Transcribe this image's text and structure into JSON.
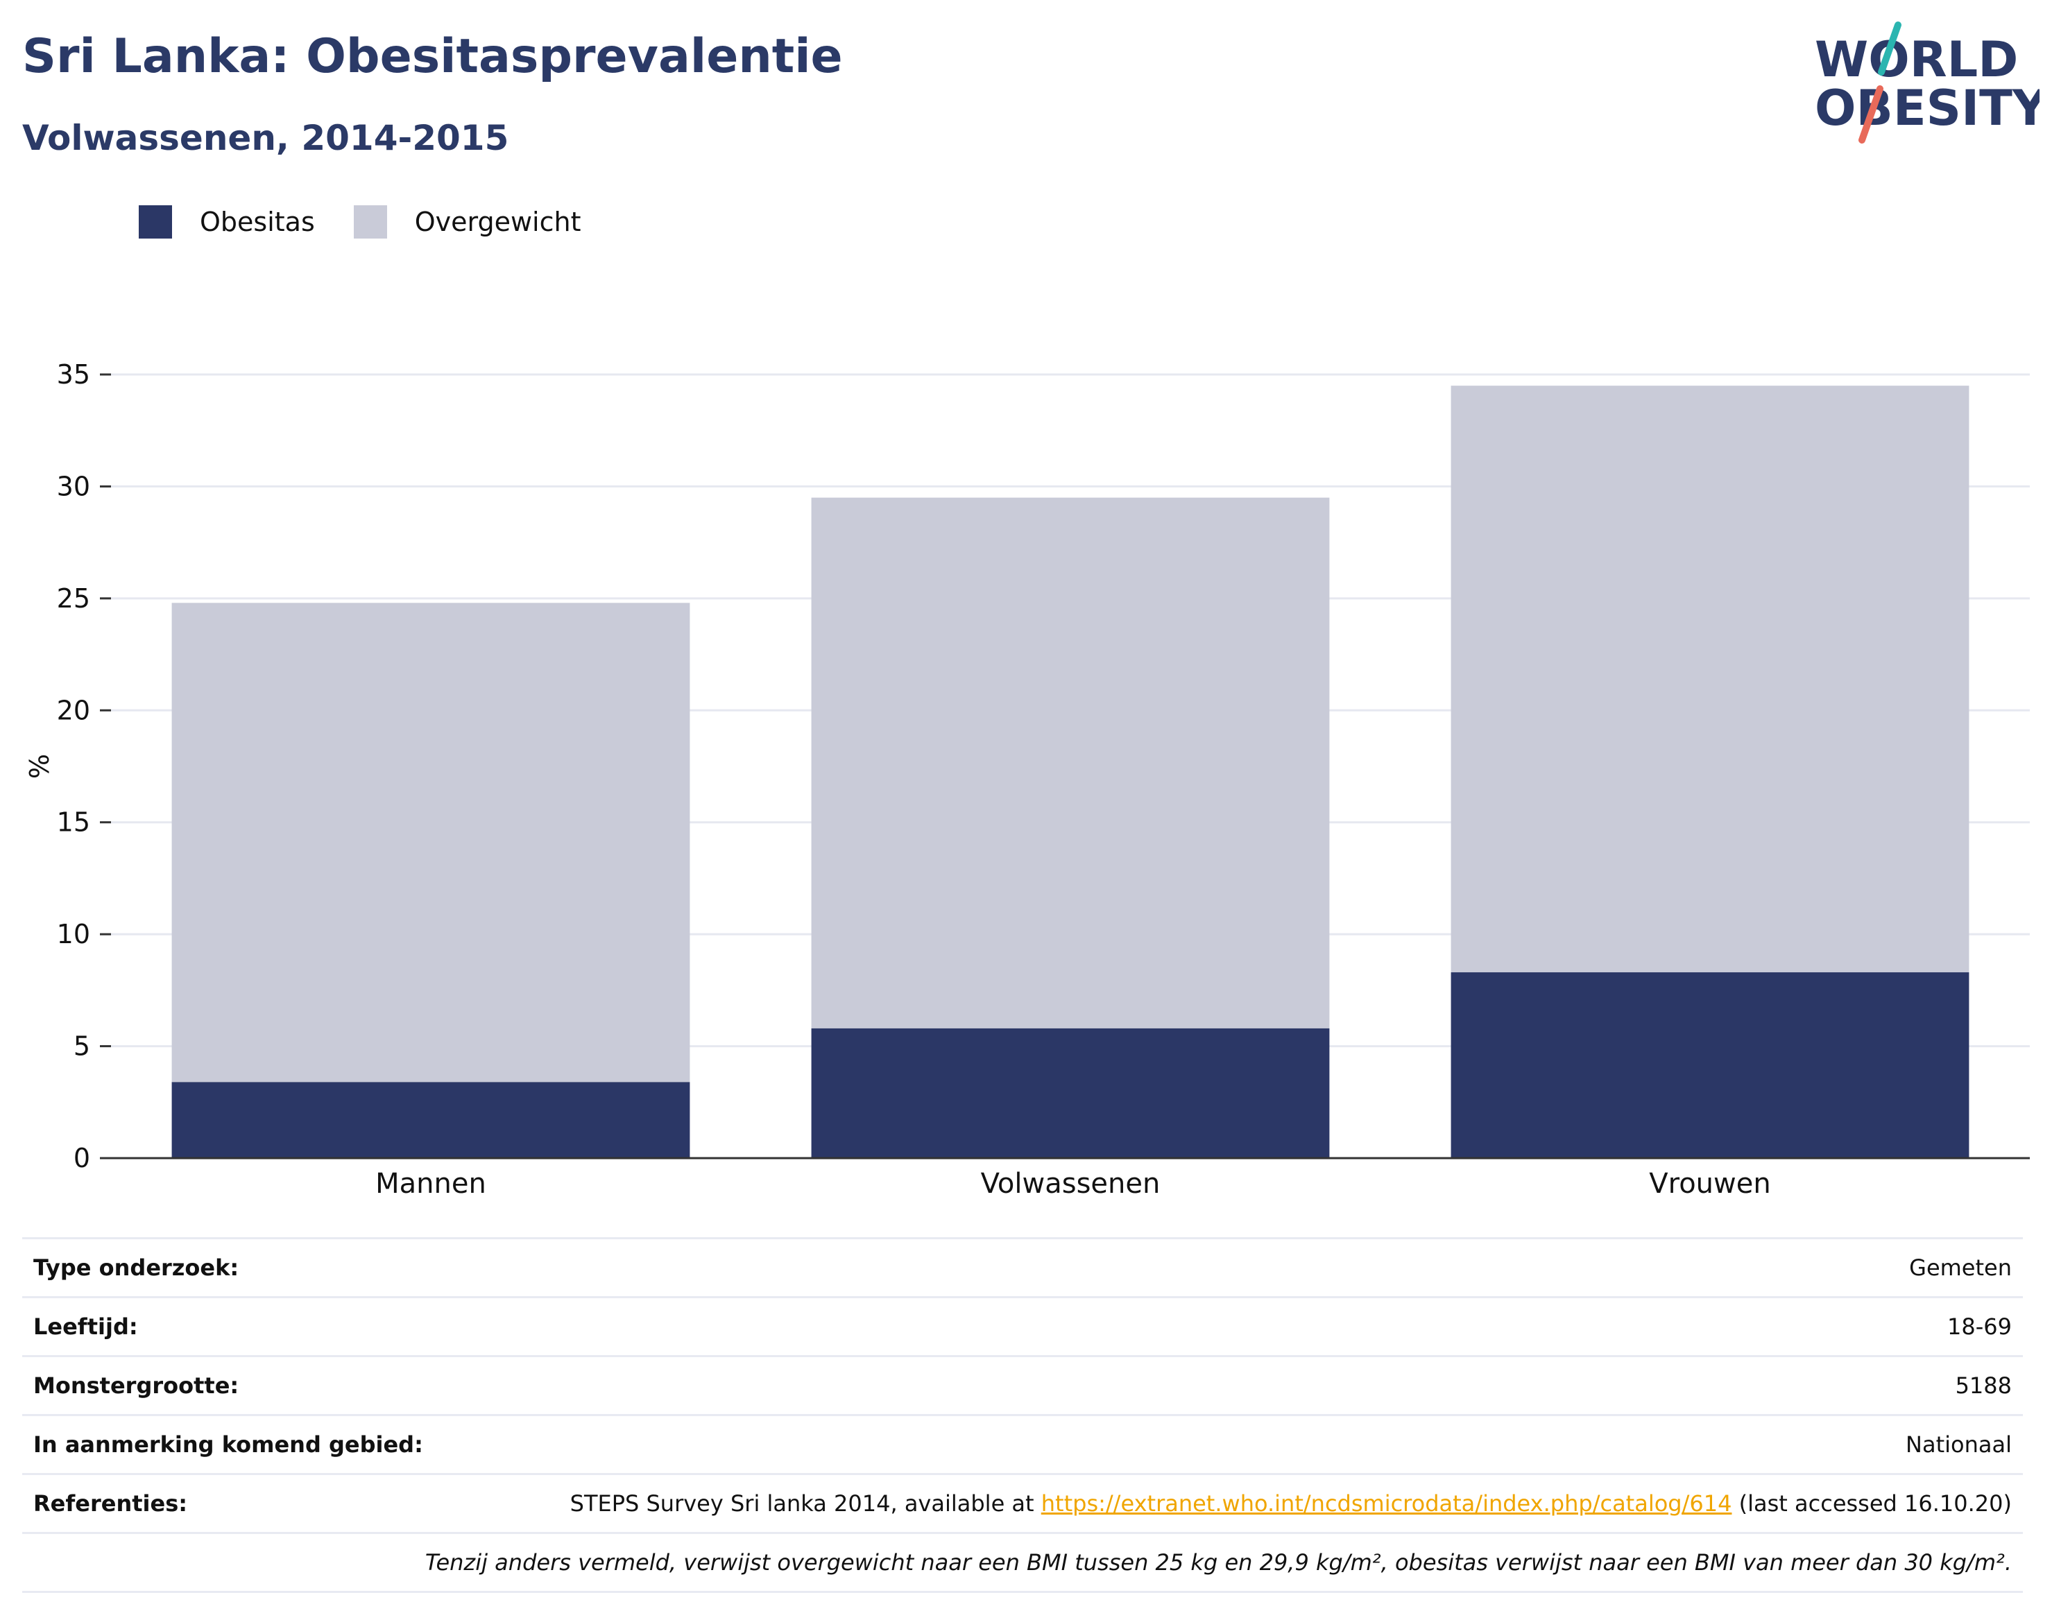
{
  "header": {
    "title": "Sri Lanka: Obesitasprevalentie",
    "subtitle": "Volwassenen, 2014-2015"
  },
  "logo": {
    "text_line1": "WORLD",
    "text_line2": "OBESITY",
    "color_text": "#2b3a67",
    "color_slash_top": "#2bb5b0",
    "color_slash_bottom": "#e86a5a"
  },
  "legend": [
    {
      "label": "Obesitas",
      "color": "#2b3766"
    },
    {
      "label": "Overgewicht",
      "color": "#c9cbd8"
    }
  ],
  "chart_data": {
    "type": "bar",
    "stacked": true,
    "categories": [
      "Mannen",
      "Volwassenen",
      "Vrouwen"
    ],
    "series": [
      {
        "name": "Obesitas",
        "color": "#2b3766",
        "values": [
          3.4,
          5.8,
          8.3
        ]
      },
      {
        "name": "Overgewicht",
        "color": "#c9cbd8",
        "values": [
          21.4,
          23.7,
          26.2
        ]
      }
    ],
    "ylabel": "%",
    "ylim": [
      0,
      35
    ],
    "yticks": [
      0,
      5,
      10,
      15,
      20,
      25,
      30,
      35
    ],
    "grid": true
  },
  "info": {
    "rows": [
      {
        "key": "Type onderzoek:",
        "value": "Gemeten"
      },
      {
        "key": "Leeftijd:",
        "value": "18-69"
      },
      {
        "key": "Monstergrootte:",
        "value": "5188"
      },
      {
        "key": "In aanmerking komend gebied:",
        "value": "Nationaal"
      }
    ],
    "references": {
      "key": "Referenties:",
      "prefix": "STEPS Survey Sri lanka 2014, available at ",
      "link": "https://extranet.who.int/ncdsmicrodata/index.php/catalog/614",
      "suffix": " (last accessed 16.10.20)"
    },
    "note": "Tenzij anders vermeld, verwijst overgewicht naar een BMI tussen 25 kg en 29,9 kg/m², obesitas verwijst naar een BMI van meer dan 30 kg/m²."
  }
}
